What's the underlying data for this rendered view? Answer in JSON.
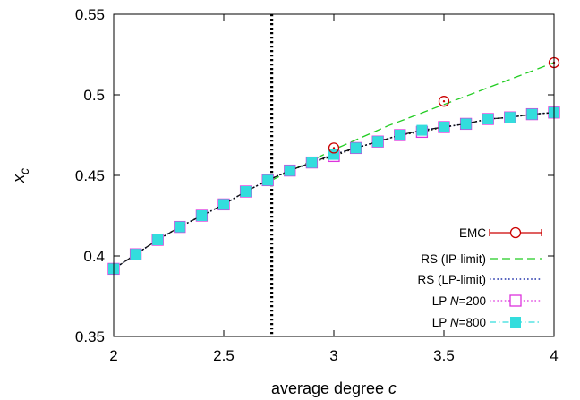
{
  "chart_data": {
    "type": "line",
    "title": "",
    "xlabel": "average degree c",
    "ylabel": "x_c",
    "xlim": [
      2,
      4
    ],
    "ylim": [
      0.35,
      0.55
    ],
    "xticks": [
      "2",
      "2.5",
      "3",
      "3.5",
      "4"
    ],
    "yticks": [
      "0.35",
      "0.4",
      "0.45",
      "0.5",
      "0.55"
    ],
    "grid": false,
    "legend_position": "bottom-right",
    "vertical_line": {
      "x": 2.718,
      "style": "dotted",
      "color": "#000000"
    },
    "series": [
      {
        "name": "EMC",
        "style": "points-with-errorbars",
        "marker": "circle-dot",
        "color": "#cc0000",
        "x": [
          3.0,
          3.5,
          4.0
        ],
        "y": [
          0.467,
          0.496,
          0.52
        ]
      },
      {
        "name": "RS (IP-limit)",
        "style": "dashed",
        "color": "#22cc22",
        "x": [
          2.718,
          3.0,
          3.25,
          3.5,
          3.75,
          4.0
        ],
        "y": [
          0.447,
          0.466,
          0.481,
          0.494,
          0.507,
          0.52
        ]
      },
      {
        "name": "RS (LP-limit)",
        "style": "dotted",
        "color": "#2233aa",
        "x": [
          2.0,
          2.1,
          2.2,
          2.3,
          2.4,
          2.5,
          2.6,
          2.7,
          2.8,
          2.9,
          3.0,
          3.1,
          3.2,
          3.3,
          3.4,
          3.5,
          3.6,
          3.7,
          3.8,
          3.9,
          4.0
        ],
        "y": [
          0.392,
          0.401,
          0.41,
          0.418,
          0.425,
          0.432,
          0.44,
          0.447,
          0.453,
          0.458,
          0.463,
          0.467,
          0.471,
          0.475,
          0.478,
          0.48,
          0.482,
          0.485,
          0.486,
          0.488,
          0.489
        ]
      },
      {
        "name": "LP N=200",
        "style": "dotted-markers",
        "marker": "open-square",
        "color": "#dd33dd",
        "x": [
          2.0,
          2.1,
          2.2,
          2.3,
          2.4,
          2.5,
          2.6,
          2.7,
          2.8,
          2.9,
          3.0,
          3.1,
          3.2,
          3.3,
          3.4,
          3.5,
          3.6,
          3.7,
          3.8,
          3.9,
          4.0
        ],
        "y": [
          0.392,
          0.401,
          0.41,
          0.418,
          0.425,
          0.432,
          0.44,
          0.447,
          0.453,
          0.458,
          0.462,
          0.467,
          0.471,
          0.475,
          0.477,
          0.48,
          0.482,
          0.485,
          0.486,
          0.488,
          0.489
        ]
      },
      {
        "name": "LP N=800",
        "style": "dashdot-markers",
        "marker": "filled-square",
        "color": "#33dddd",
        "x": [
          2.0,
          2.1,
          2.2,
          2.3,
          2.4,
          2.5,
          2.6,
          2.7,
          2.8,
          2.9,
          3.0,
          3.1,
          3.2,
          3.3,
          3.4,
          3.5,
          3.6,
          3.7,
          3.8,
          3.9,
          4.0
        ],
        "y": [
          0.392,
          0.401,
          0.41,
          0.418,
          0.425,
          0.432,
          0.44,
          0.447,
          0.453,
          0.458,
          0.463,
          0.467,
          0.471,
          0.475,
          0.478,
          0.48,
          0.482,
          0.485,
          0.486,
          0.488,
          0.489
        ]
      }
    ]
  }
}
